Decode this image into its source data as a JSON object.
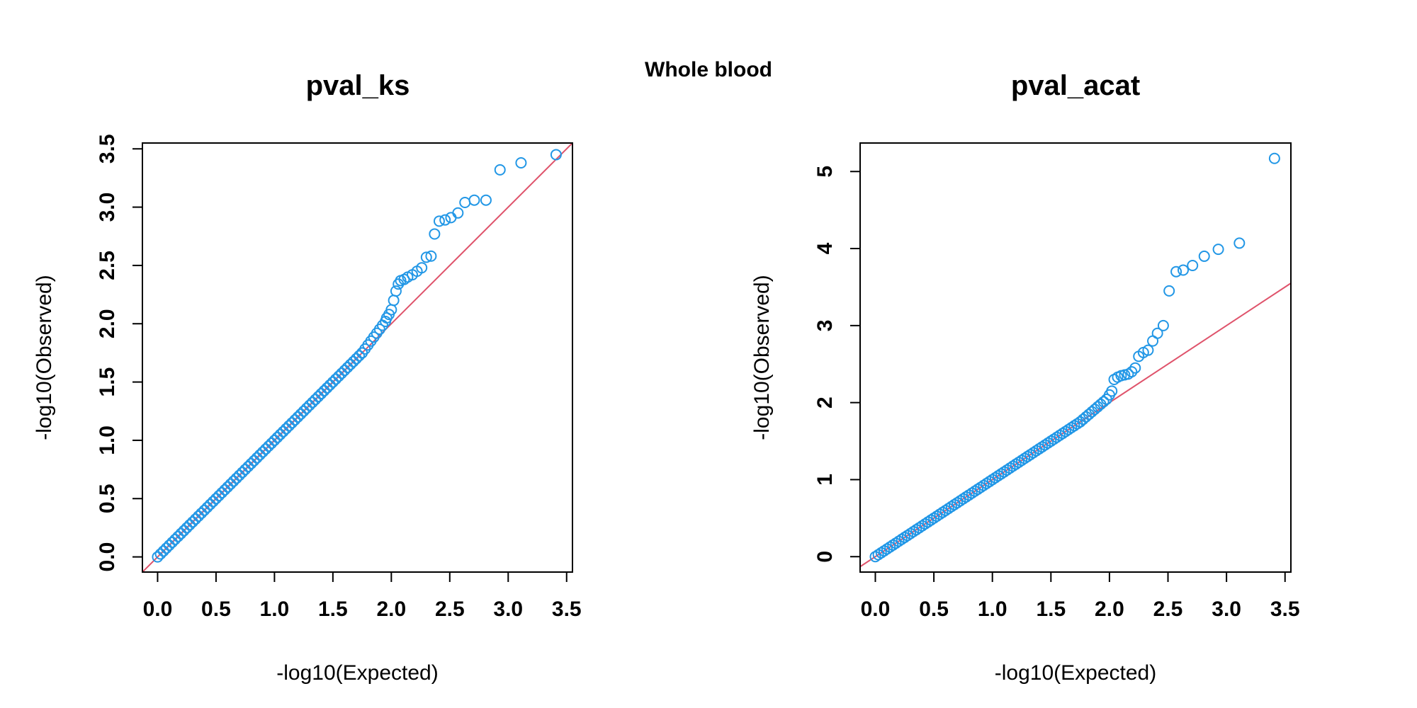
{
  "figure": {
    "title": "Whole blood"
  },
  "colors": {
    "points": "#2297E6",
    "reference_line": "#DF536B",
    "axes": "#000000"
  },
  "chart_data": [
    {
      "type": "scatter",
      "title": "pval_ks",
      "xlabel": "-log10(Expected)",
      "ylabel": "-log10(Observed)",
      "xlim": [
        -0.13,
        3.55
      ],
      "ylim": [
        -0.13,
        3.55
      ],
      "x_ticks": [
        0.0,
        0.5,
        1.0,
        1.5,
        2.0,
        2.5,
        3.0,
        3.5
      ],
      "x_tick_labels": [
        "0.0",
        "0.5",
        "1.0",
        "1.5",
        "2.0",
        "2.5",
        "3.0",
        "3.5"
      ],
      "y_ticks": [
        0.0,
        0.5,
        1.0,
        1.5,
        2.0,
        2.5,
        3.0,
        3.5
      ],
      "y_tick_labels": [
        "0.0",
        "0.5",
        "1.0",
        "1.5",
        "2.0",
        "2.5",
        "3.0",
        "3.5"
      ],
      "y_tick_rotated": true,
      "grid": false,
      "reference_line": {
        "slope": 1,
        "intercept": 0
      },
      "dense_segments": [
        {
          "x0": 0.0,
          "x1": 1.75,
          "y0": 0.0,
          "y1": 1.75,
          "step": 0.025
        },
        {
          "x0": 1.75,
          "x1": 1.95,
          "y0": 1.75,
          "y1": 2.02,
          "step": 0.025
        }
      ],
      "points": [
        [
          1.96,
          2.05
        ],
        [
          1.98,
          2.08
        ],
        [
          2.0,
          2.12
        ],
        [
          2.02,
          2.2
        ],
        [
          2.04,
          2.28
        ],
        [
          2.06,
          2.34
        ],
        [
          2.08,
          2.37
        ],
        [
          2.11,
          2.38
        ],
        [
          2.14,
          2.4
        ],
        [
          2.18,
          2.42
        ],
        [
          2.22,
          2.45
        ],
        [
          2.26,
          2.48
        ],
        [
          2.3,
          2.57
        ],
        [
          2.34,
          2.58
        ],
        [
          2.37,
          2.77
        ],
        [
          2.41,
          2.88
        ],
        [
          2.46,
          2.89
        ],
        [
          2.51,
          2.91
        ],
        [
          2.57,
          2.95
        ],
        [
          2.63,
          3.04
        ],
        [
          2.71,
          3.06
        ],
        [
          2.81,
          3.06
        ],
        [
          2.93,
          3.32
        ],
        [
          3.11,
          3.38
        ],
        [
          3.41,
          3.45
        ]
      ]
    },
    {
      "type": "scatter",
      "title": "pval_acat",
      "xlabel": "-log10(Expected)",
      "ylabel": "-log10(Observed)",
      "xlim": [
        -0.13,
        3.55
      ],
      "ylim": [
        -0.2,
        5.37
      ],
      "x_ticks": [
        0.0,
        0.5,
        1.0,
        1.5,
        2.0,
        2.5,
        3.0,
        3.5
      ],
      "x_tick_labels": [
        "0.0",
        "0.5",
        "1.0",
        "1.5",
        "2.0",
        "2.5",
        "3.0",
        "3.5"
      ],
      "y_ticks": [
        0,
        1,
        2,
        3,
        4,
        5
      ],
      "y_tick_labels": [
        "0",
        "1",
        "2",
        "3",
        "4",
        "5"
      ],
      "y_tick_rotated": true,
      "grid": false,
      "reference_line": {
        "slope": 1,
        "intercept": 0
      },
      "dense_segments": [
        {
          "x0": 0.0,
          "x1": 1.75,
          "y0": 0.0,
          "y1": 1.75,
          "step": 0.025
        },
        {
          "x0": 1.75,
          "x1": 1.98,
          "y0": 1.75,
          "y1": 2.05,
          "step": 0.025
        }
      ],
      "points": [
        [
          2.0,
          2.1
        ],
        [
          2.02,
          2.15
        ],
        [
          2.04,
          2.3
        ],
        [
          2.07,
          2.33
        ],
        [
          2.1,
          2.35
        ],
        [
          2.13,
          2.36
        ],
        [
          2.16,
          2.37
        ],
        [
          2.19,
          2.4
        ],
        [
          2.22,
          2.45
        ],
        [
          2.25,
          2.6
        ],
        [
          2.29,
          2.65
        ],
        [
          2.33,
          2.68
        ],
        [
          2.37,
          2.8
        ],
        [
          2.41,
          2.9
        ],
        [
          2.46,
          3.0
        ],
        [
          2.51,
          3.45
        ],
        [
          2.57,
          3.7
        ],
        [
          2.63,
          3.72
        ],
        [
          2.71,
          3.78
        ],
        [
          2.81,
          3.9
        ],
        [
          2.93,
          3.99
        ],
        [
          3.11,
          4.07
        ],
        [
          3.41,
          5.17
        ]
      ]
    }
  ]
}
